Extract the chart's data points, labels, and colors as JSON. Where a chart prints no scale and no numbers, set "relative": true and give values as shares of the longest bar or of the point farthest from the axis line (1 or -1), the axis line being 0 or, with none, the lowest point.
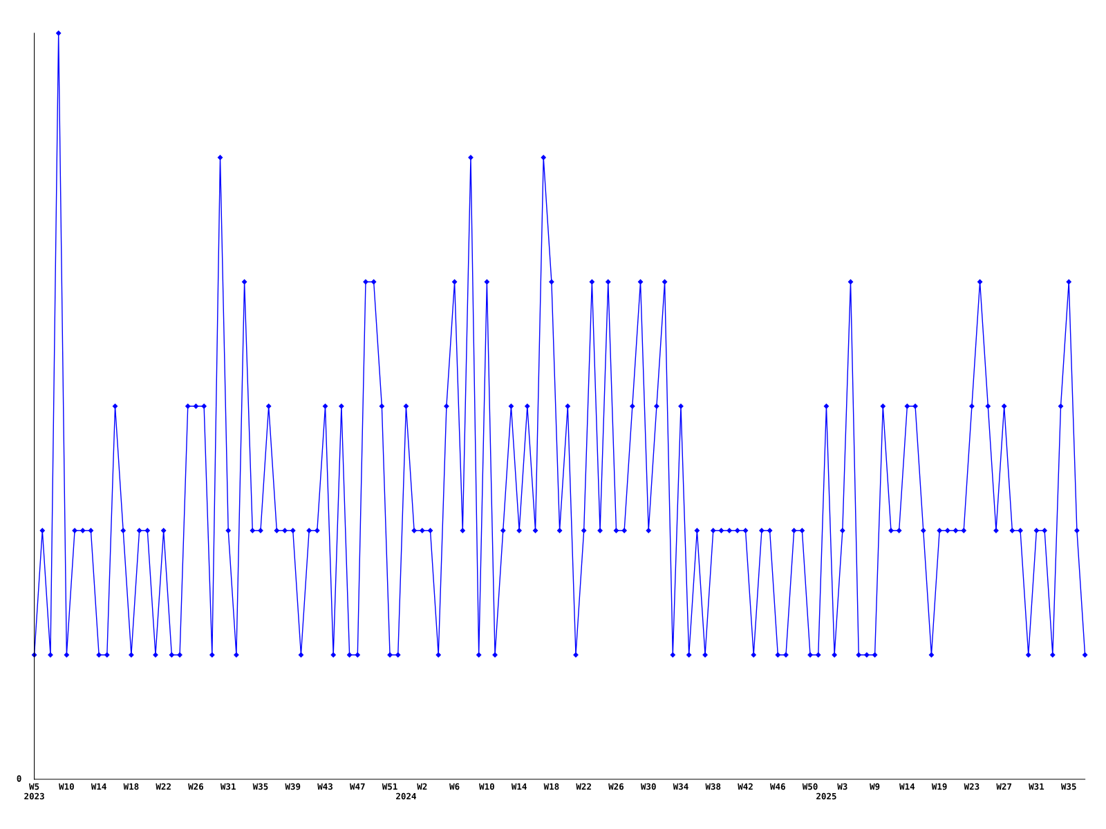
{
  "chart_data": {
    "type": "line",
    "relative": true,
    "color": "#0000ff",
    "marker": "diamond",
    "line_style": "solid",
    "grid": false,
    "legend": false,
    "annotations": [
      "0"
    ],
    "categories": [
      "W5\n2023",
      null,
      null,
      null,
      "W10",
      null,
      null,
      null,
      "W14",
      null,
      null,
      null,
      "W18",
      null,
      null,
      null,
      "W22",
      null,
      null,
      null,
      "W26",
      null,
      null,
      null,
      "W31",
      null,
      null,
      null,
      "W35",
      null,
      null,
      null,
      "W39",
      null,
      null,
      null,
      "W43",
      null,
      null,
      null,
      "W47",
      null,
      null,
      null,
      "W51",
      null,
      "\n2024",
      null,
      "W2",
      null,
      null,
      null,
      "W6",
      null,
      null,
      null,
      "W10",
      null,
      null,
      null,
      "W14",
      null,
      null,
      null,
      "W18",
      null,
      null,
      null,
      "W22",
      null,
      null,
      null,
      "W26",
      null,
      null,
      null,
      "W30",
      null,
      null,
      null,
      "W34",
      null,
      null,
      null,
      "W38",
      null,
      null,
      null,
      "W42",
      null,
      null,
      null,
      "W46",
      null,
      null,
      null,
      "W50",
      null,
      "\n2025",
      null,
      "W3",
      null,
      null,
      null,
      "W9",
      null,
      null,
      null,
      "W14",
      null,
      null,
      null,
      "W19",
      null,
      null,
      null,
      "W23",
      null,
      null,
      null,
      "W27",
      null,
      null,
      null,
      "W31",
      null,
      null,
      null,
      "W35",
      null,
      null
    ],
    "values": [
      0.1667,
      0.3333,
      0.1667,
      1,
      0.1667,
      0.3333,
      0.3333,
      0.3333,
      0.1667,
      0.1667,
      0.5,
      0.3333,
      0.1667,
      0.3333,
      0.3333,
      0.1667,
      0.3333,
      0.1667,
      0.1667,
      0.5,
      0.5,
      0.5,
      0.1667,
      0.8333,
      0.3333,
      0.1667,
      0.6667,
      0.3333,
      0.3333,
      0.5,
      0.3333,
      0.3333,
      0.3333,
      0.1667,
      0.3333,
      0.3333,
      0.5,
      0.1667,
      0.5,
      0.1667,
      0.1667,
      0.6667,
      0.6667,
      0.5,
      0.1667,
      0.1667,
      0.5,
      0.3333,
      0.3333,
      0.3333,
      0.1667,
      0.5,
      0.6667,
      0.3333,
      0.8333,
      0.1667,
      0.6667,
      0.1667,
      0.3333,
      0.5,
      0.3333,
      0.5,
      0.3333,
      0.8333,
      0.6667,
      0.3333,
      0.5,
      0.1667,
      0.3333,
      0.6667,
      0.3333,
      0.6667,
      0.3333,
      0.3333,
      0.5,
      0.6667,
      0.3333,
      0.5,
      0.6667,
      0.1667,
      0.5,
      0.1667,
      0.3333,
      0.1667,
      0.3333,
      0.3333,
      0.3333,
      0.3333,
      0.3333,
      0.1667,
      0.3333,
      0.3333,
      0.1667,
      0.1667,
      0.3333,
      0.3333,
      0.1667,
      0.1667,
      0.5,
      0.1667,
      0.3333,
      0.6667,
      0.1667,
      0.1667,
      0.1667,
      0.5,
      0.3333,
      0.3333,
      0.5,
      0.5,
      0.3333,
      0.1667,
      0.3333,
      0.3333,
      0.3333,
      0.3333,
      0.5,
      0.6667,
      0.5,
      0.3333,
      0.5,
      0.3333,
      0.3333,
      0.1667,
      0.3333,
      0.3333,
      0.1667,
      0.5,
      0.6667,
      0.3333,
      0.1667
    ]
  }
}
